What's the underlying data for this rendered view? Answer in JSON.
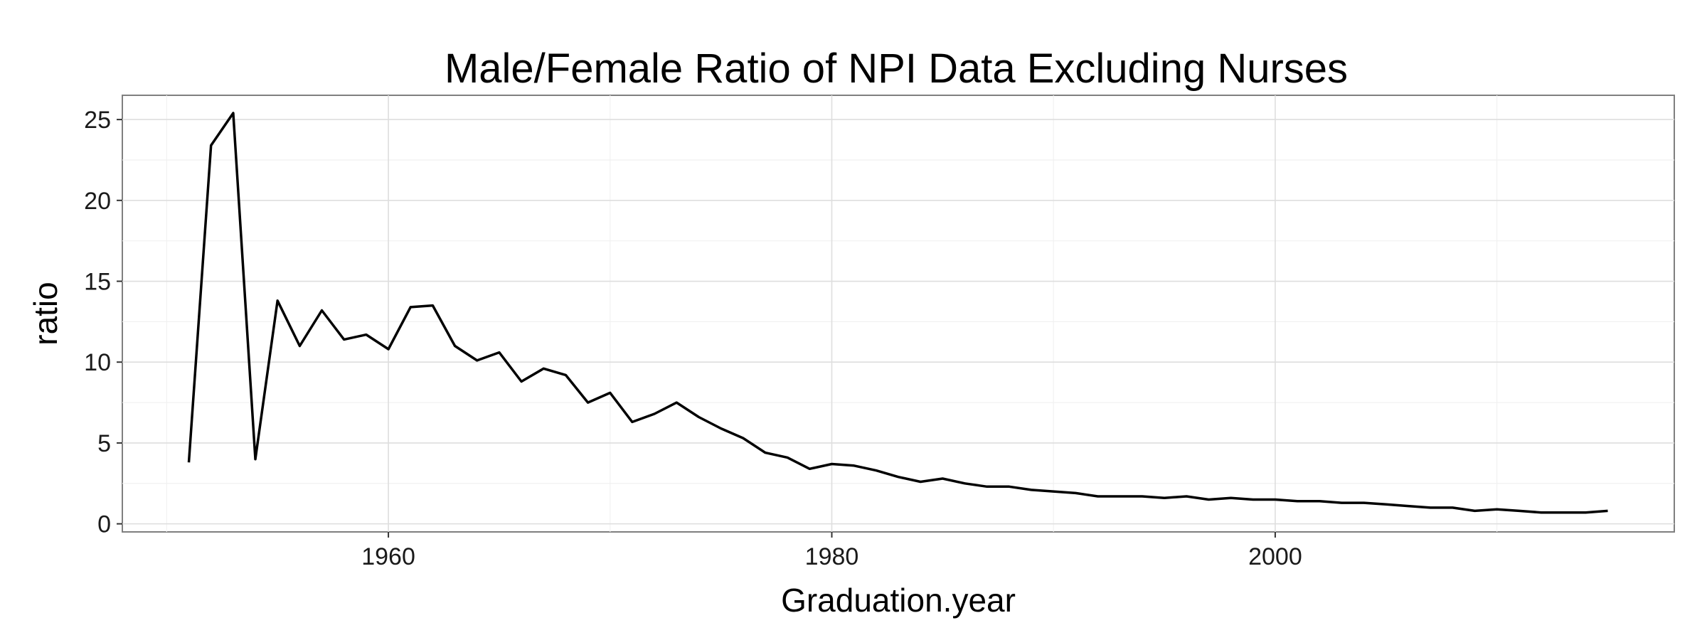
{
  "chart_data": {
    "type": "line",
    "title": "Male/Female Ratio of NPI Data Excluding Nurses",
    "xlabel": "Graduation.year",
    "ylabel": "ratio",
    "xlim": [
      1948,
      2018
    ],
    "ylim": [
      -0.5,
      26.5
    ],
    "x_ticks": [
      1960,
      1980,
      2000
    ],
    "y_ticks": [
      0,
      5,
      10,
      15,
      20,
      25
    ],
    "grid": true,
    "legend": "none",
    "series": [
      {
        "x": [
          1951,
          1952,
          1953,
          1954,
          1955,
          1956,
          1957,
          1958,
          1959,
          1960,
          1961,
          1962,
          1963,
          1964,
          1965,
          1966,
          1967,
          1968,
          1969,
          1970,
          1971,
          1972,
          1973,
          1974,
          1975,
          1976,
          1977,
          1978,
          1979,
          1980,
          1981,
          1982,
          1983,
          1984,
          1985,
          1986,
          1987,
          1988,
          1989,
          1990,
          1991,
          1992,
          1993,
          1994,
          1995,
          1996,
          1997,
          1998,
          1999,
          2000,
          2001,
          2002,
          2003,
          2004,
          2005,
          2006,
          2007,
          2008,
          2009,
          2010,
          2011,
          2012,
          2013,
          2014,
          2015
        ],
        "values": [
          3.8,
          23.4,
          25.4,
          4.0,
          13.8,
          11.0,
          13.2,
          11.4,
          11.7,
          10.8,
          13.4,
          13.5,
          11.0,
          10.1,
          10.6,
          8.8,
          9.6,
          9.2,
          7.5,
          8.1,
          6.3,
          6.8,
          7.5,
          6.6,
          5.9,
          5.3,
          4.4,
          4.1,
          3.4,
          3.7,
          3.6,
          3.3,
          2.9,
          2.6,
          2.8,
          2.5,
          2.3,
          2.3,
          2.1,
          2.0,
          1.9,
          1.7,
          1.7,
          1.7,
          1.6,
          1.7,
          1.5,
          1.6,
          1.5,
          1.5,
          1.4,
          1.4,
          1.3,
          1.3,
          1.2,
          1.1,
          1.0,
          1.0,
          0.8,
          0.9,
          0.8,
          0.7,
          0.7,
          0.7,
          0.8
        ]
      }
    ]
  }
}
